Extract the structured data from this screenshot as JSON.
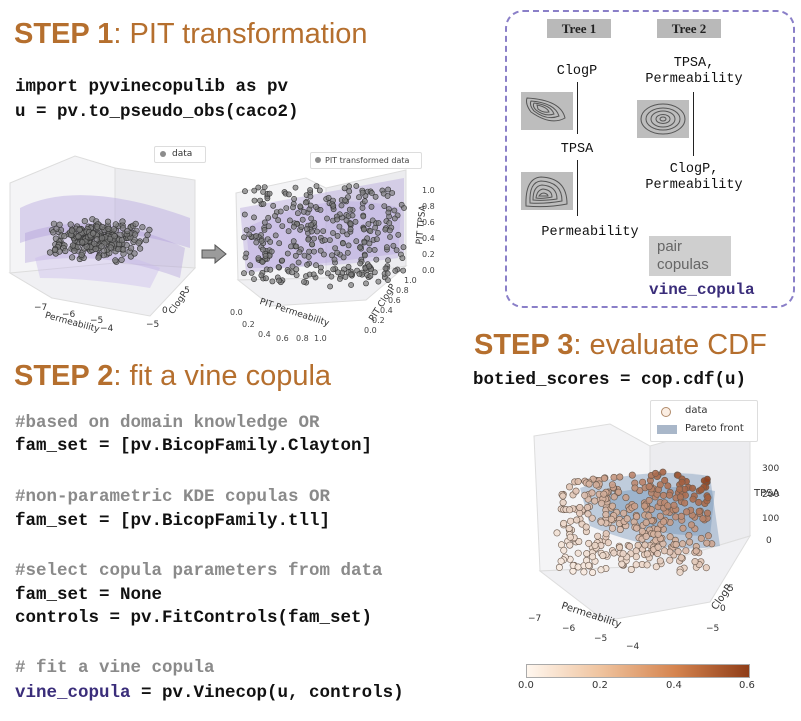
{
  "step1": {
    "label": "STEP 1",
    "rest": ": PIT transformation"
  },
  "step1_code": [
    "import pyvinecopulib as pv",
    "u = pv.to_pseudo_obs(caco2)"
  ],
  "plot_left": {
    "legend": "data",
    "ticks_perm": [
      "−7",
      "−6",
      "−5",
      "−4"
    ],
    "xlabel": "Permeability",
    "ticks_clogp": [
      "5",
      "0",
      "−5"
    ],
    "ylabel": "ClogP"
  },
  "plot_right": {
    "legend": "PIT transformed data",
    "ticks_z": [
      "1.0",
      "0.8",
      "0.6",
      "0.4",
      "0.2",
      "0.0"
    ],
    "zlabel": "PIT TPSA",
    "ticks_x": [
      "0.0",
      "0.2",
      "0.4",
      "0.6",
      "0.8",
      "1.0"
    ],
    "xlabel": "PIT Permeability",
    "ticks_y": [
      "0.0",
      "0.2",
      "0.4",
      "0.6",
      "0.8",
      "1.0"
    ],
    "ylabel": "PIT ClogP"
  },
  "vine": {
    "tree1": "Tree 1",
    "tree2": "Tree 2",
    "clogp": "ClogP",
    "tpsa": "TPSA",
    "perm": "Permeability",
    "t2_top": "TPSA,\nPermeability",
    "t2_bottom": "ClogP,\nPermeability",
    "pair": "pair\ncopulas",
    "vine_label": "vine_copula"
  },
  "step2": {
    "label": "STEP 2",
    "rest": ": fit a vine copula"
  },
  "step2_code": {
    "c1": "#based on domain knowledge OR",
    "l1": "fam_set = [pv.BicopFamily.Clayton]",
    "c2": "#non-parametric KDE copulas OR",
    "l2": "fam_set = [pv.BicopFamily.tll]",
    "c3": "#select copula parameters from data",
    "l3": "fam_set = None",
    "l4": "controls = pv.FitControls(fam_set)",
    "c4": "# fit a vine copula",
    "l5_kw": "vine_copula",
    "l5_rest": " = pv.Vinecop(u, controls)"
  },
  "step3": {
    "label": "STEP 3",
    "rest": ": evaluate CDF"
  },
  "step3_code": "botied_scores = cop.cdf(u)",
  "plot3": {
    "legend_data": "data",
    "legend_pareto": "Pareto front",
    "ticks_z": [
      "300",
      "200",
      "100",
      "0"
    ],
    "zlabel": "TPSA",
    "ticks_x": [
      "−7",
      "−6",
      "−5",
      "−4"
    ],
    "xlabel": "Permeability",
    "ticks_y": [
      "5",
      "0",
      "−5"
    ],
    "ylabel": "ClogP",
    "colorbar": [
      "0.0",
      "0.2",
      "0.4",
      "0.6"
    ]
  }
}
